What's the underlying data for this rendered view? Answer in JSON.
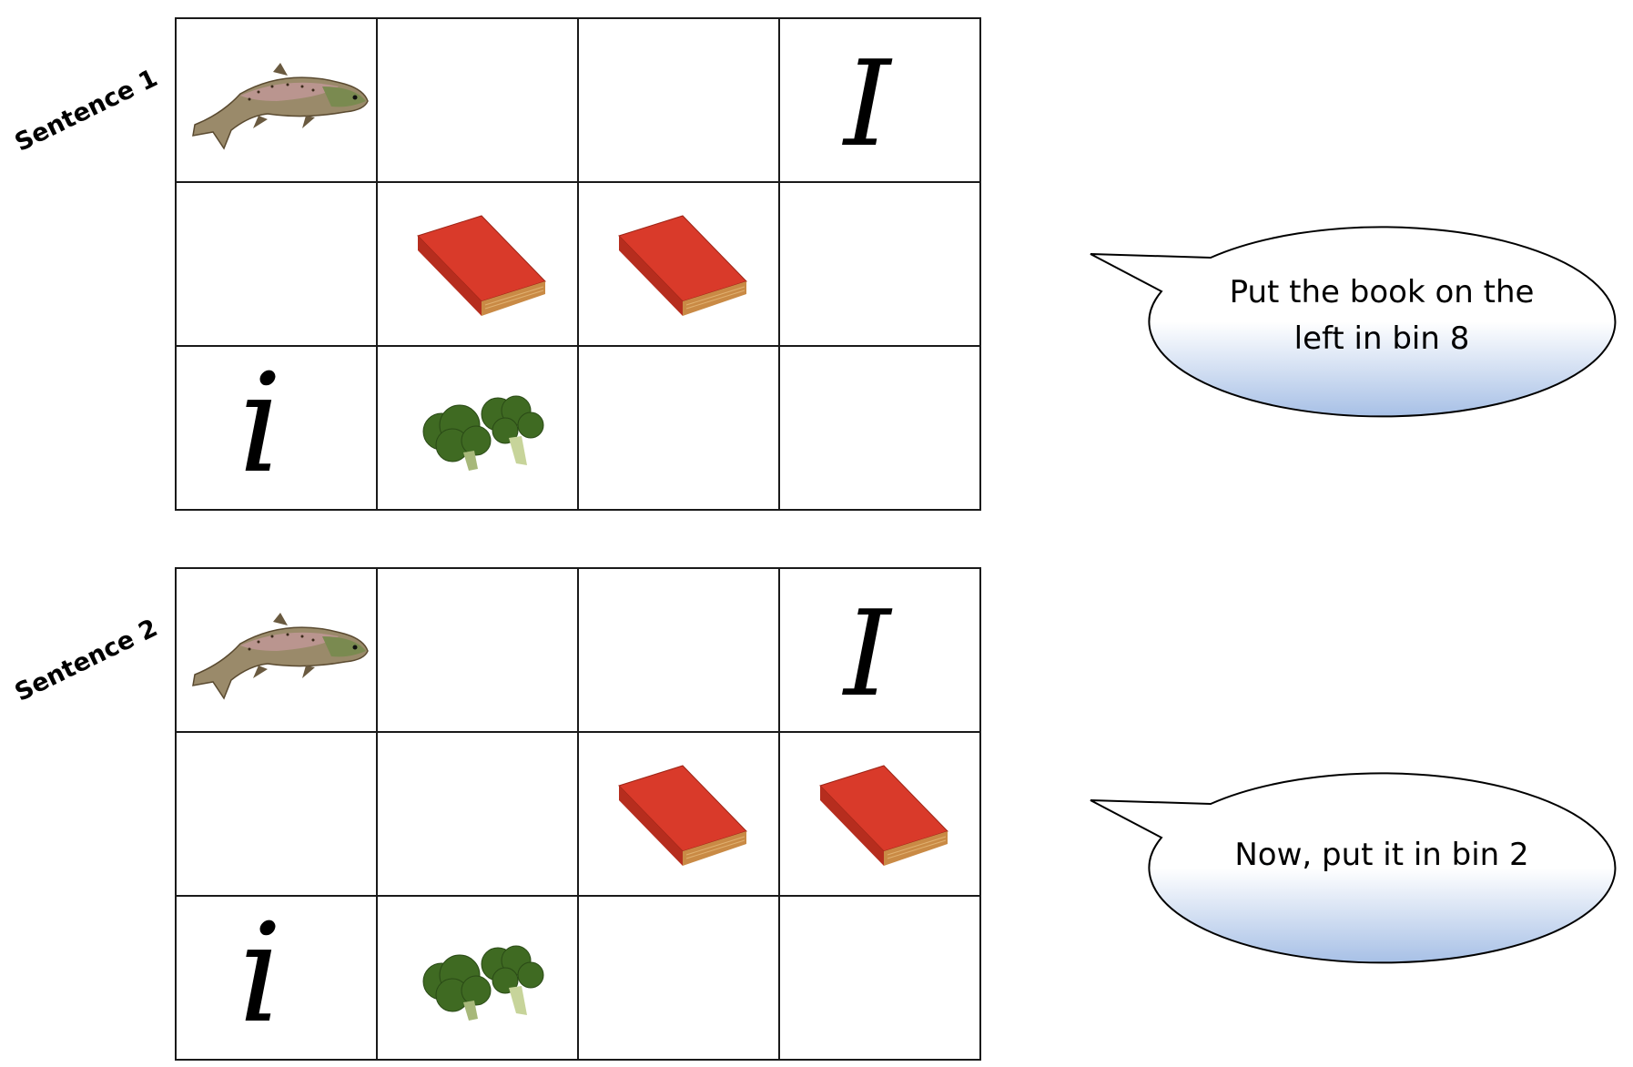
{
  "panels": [
    {
      "label": "Sentence 1",
      "speech": "Put the book on the left in bin 8",
      "grid": [
        [
          "fish",
          "",
          "",
          "I"
        ],
        [
          "",
          "book",
          "book",
          ""
        ],
        [
          "i",
          "broccoli",
          "",
          ""
        ]
      ]
    },
    {
      "label": "Sentence 2",
      "speech": "Now, put it in bin 2",
      "grid": [
        [
          "fish",
          "",
          "",
          "I"
        ],
        [
          "",
          "",
          "book",
          "book"
        ],
        [
          "i",
          "broccoli",
          "",
          ""
        ]
      ]
    }
  ],
  "letters": {
    "upper": "I",
    "lower": "i"
  },
  "icons": {
    "fish": "trout-fish-icon",
    "book": "red-book-icon",
    "broccoli": "broccoli-icon"
  },
  "colors": {
    "book_cover": "#d93a2a",
    "book_pages": "#c98a45",
    "fish_body": "#9a8a6a",
    "broccoli": "#3f6a22",
    "bubble_top": "#ffffff",
    "bubble_bottom": "#a7c0e6",
    "grid_line": "#1a1a1a"
  }
}
